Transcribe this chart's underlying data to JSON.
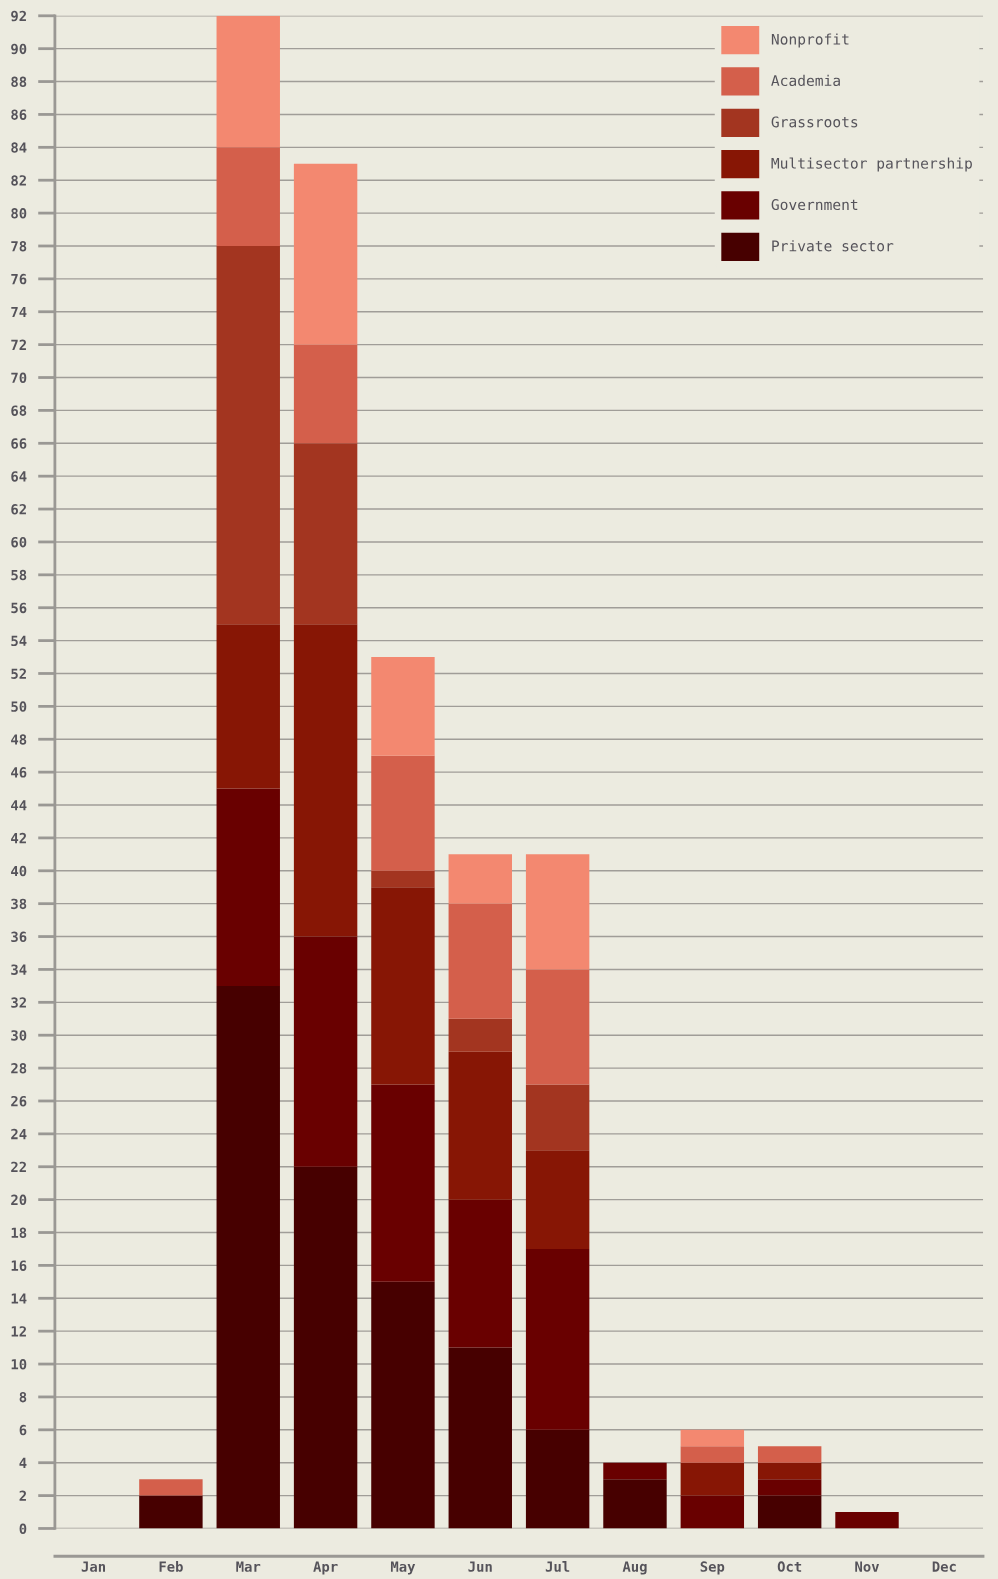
{
  "chart_data": {
    "type": "bar",
    "stacked": true,
    "categories": [
      "Jan",
      "Feb",
      "Mar",
      "Apr",
      "May",
      "Jun",
      "Jul",
      "Aug",
      "Sep",
      "Oct",
      "Nov",
      "Dec"
    ],
    "series": [
      {
        "name": "Private sector",
        "color": "#470000",
        "values": [
          0,
          2,
          33,
          22,
          15,
          11,
          6,
          3,
          0,
          2,
          0,
          0
        ]
      },
      {
        "name": "Government",
        "color": "#690000",
        "values": [
          0,
          0,
          12,
          14,
          12,
          9,
          11,
          1,
          2,
          1,
          1,
          0
        ]
      },
      {
        "name": "Multisector partnership",
        "color": "#871605",
        "values": [
          0,
          0,
          10,
          19,
          12,
          9,
          6,
          0,
          2,
          1,
          0,
          0
        ]
      },
      {
        "name": "Grassroots",
        "color": "#a33520",
        "values": [
          0,
          0,
          23,
          11,
          1,
          2,
          4,
          0,
          0,
          0,
          0,
          0
        ]
      },
      {
        "name": "Academia",
        "color": "#d45f4b",
        "values": [
          0,
          1,
          6,
          6,
          7,
          7,
          7,
          0,
          1,
          1,
          0,
          0
        ]
      },
      {
        "name": "Nonprofit",
        "color": "#f38870",
        "values": [
          0,
          0,
          8,
          11,
          6,
          3,
          7,
          0,
          1,
          0,
          0,
          0
        ]
      }
    ],
    "ylim": [
      0,
      92
    ],
    "yticks": [
      0,
      2,
      4,
      6,
      8,
      10,
      12,
      14,
      16,
      18,
      20,
      22,
      24,
      26,
      28,
      30,
      32,
      34,
      36,
      38,
      40,
      42,
      44,
      46,
      48,
      50,
      52,
      54,
      56,
      58,
      60,
      62,
      64,
      66,
      68,
      70,
      72,
      74,
      76,
      78,
      80,
      82,
      84,
      86,
      88,
      90,
      92
    ],
    "grid": "y",
    "legend": "top right"
  }
}
